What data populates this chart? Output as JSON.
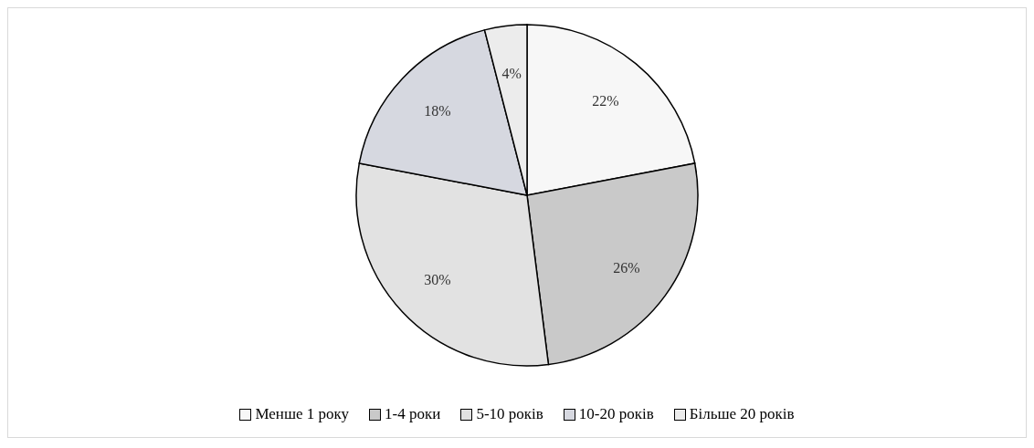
{
  "chart_data": {
    "type": "pie",
    "categories": [
      "Менше 1 року",
      "1-4 роки",
      "5-10 років",
      "10-20 років",
      "Більше 20 років"
    ],
    "values": [
      22,
      26,
      30,
      18,
      4
    ],
    "colors": [
      "#f7f7f7",
      "#c9c9c9",
      "#e2e2e2",
      "#d6d8e0",
      "#ececec"
    ],
    "value_labels": [
      "22%",
      "26%",
      "30%",
      "18%",
      "4%"
    ],
    "legend": "bottom"
  }
}
